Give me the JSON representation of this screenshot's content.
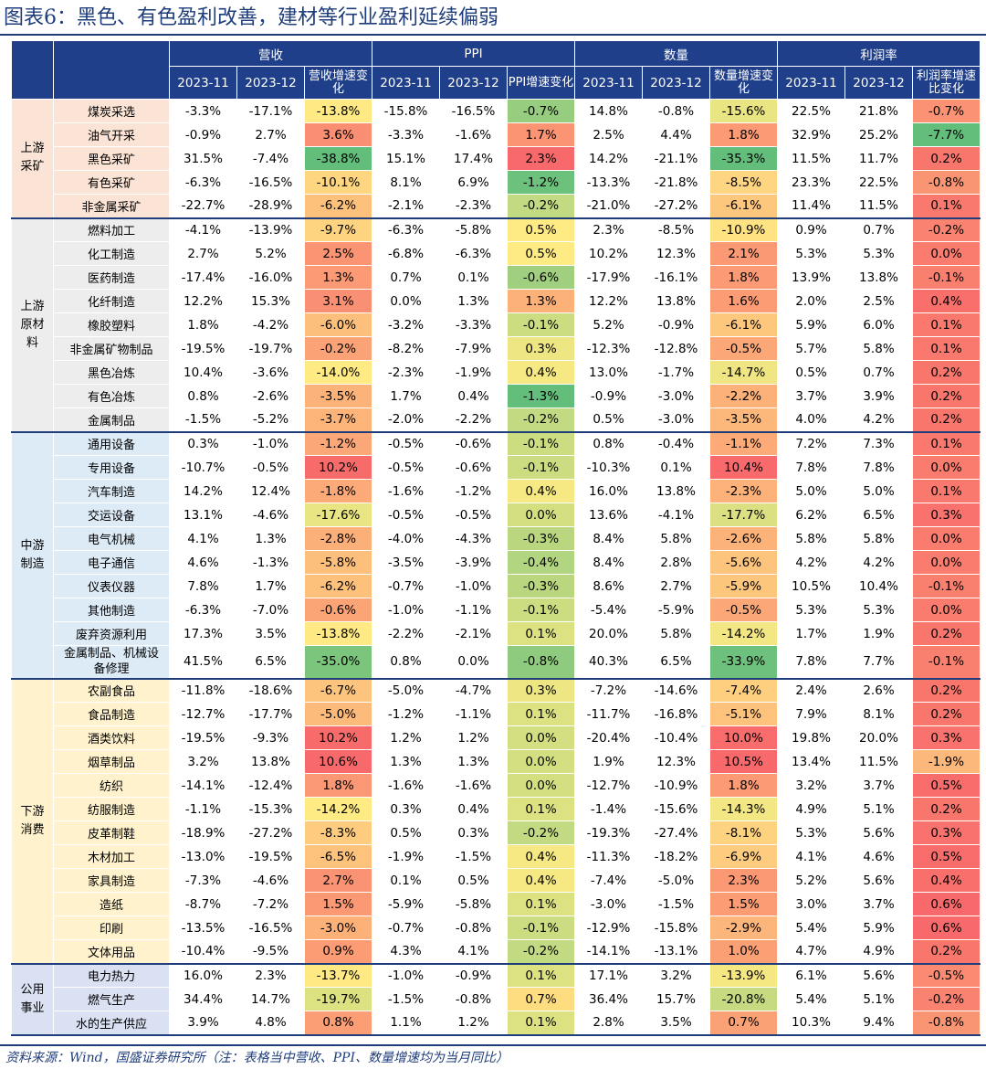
{
  "title": "图表6：黑色、有色盈利改善，建材等行业盈利延续偏弱",
  "source": "资料来源：Wind，国盛证券研究所（注：表格当中营收、PPI、数量增速均为当月同比）",
  "header": {
    "groups": [
      "营收",
      "PPI",
      "数量",
      "利润率"
    ],
    "subs": [
      [
        "2023-11",
        "2023-12",
        "营收增速变化"
      ],
      [
        "2023-11",
        "2023-12",
        "PPI增速变化"
      ],
      [
        "2023-11",
        "2023-12",
        "数量增速变化"
      ],
      [
        "2023-11",
        "2023-12",
        "利润率增速比变化"
      ]
    ]
  },
  "sections": [
    {
      "name": "上游采矿",
      "color": "#fbe4d5",
      "rows": [
        {
          "name": "煤炭采选",
          "vals": [
            "-3.3%",
            "-17.1%",
            "-13.8%",
            "-15.8%",
            "-16.5%",
            "-0.7%",
            "14.8%",
            "-0.8%",
            "-15.6%",
            "22.5%",
            "21.8%",
            "-0.7%"
          ]
        },
        {
          "name": "油气开采",
          "vals": [
            "-0.9%",
            "2.7%",
            "3.6%",
            "-3.3%",
            "-1.6%",
            "1.7%",
            "2.5%",
            "4.4%",
            "1.8%",
            "32.9%",
            "25.2%",
            "-7.7%"
          ]
        },
        {
          "name": "黑色采矿",
          "vals": [
            "31.5%",
            "-7.4%",
            "-38.8%",
            "15.1%",
            "17.4%",
            "2.3%",
            "14.2%",
            "-21.1%",
            "-35.3%",
            "11.5%",
            "11.7%",
            "0.2%"
          ]
        },
        {
          "name": "有色采矿",
          "vals": [
            "-6.3%",
            "-16.5%",
            "-10.1%",
            "8.1%",
            "6.9%",
            "-1.2%",
            "-13.3%",
            "-21.8%",
            "-8.5%",
            "23.3%",
            "22.5%",
            "-0.8%"
          ]
        },
        {
          "name": "非金属采矿",
          "vals": [
            "-22.7%",
            "-28.9%",
            "-6.2%",
            "-2.1%",
            "-2.3%",
            "-0.2%",
            "-21.0%",
            "-27.2%",
            "-6.1%",
            "11.4%",
            "11.5%",
            "0.1%"
          ]
        }
      ]
    },
    {
      "name": "上游原材料",
      "color": "#ededed",
      "rows": [
        {
          "name": "燃料加工",
          "vals": [
            "-4.1%",
            "-13.9%",
            "-9.7%",
            "-6.3%",
            "-5.8%",
            "0.5%",
            "2.3%",
            "-8.5%",
            "-10.9%",
            "0.9%",
            "0.7%",
            "-0.2%"
          ]
        },
        {
          "name": "化工制造",
          "vals": [
            "2.7%",
            "5.2%",
            "2.5%",
            "-6.8%",
            "-6.3%",
            "0.5%",
            "10.2%",
            "12.3%",
            "2.1%",
            "5.3%",
            "5.3%",
            "0.0%"
          ]
        },
        {
          "name": "医药制造",
          "vals": [
            "-17.4%",
            "-16.0%",
            "1.3%",
            "0.7%",
            "0.1%",
            "-0.6%",
            "-17.9%",
            "-16.1%",
            "1.8%",
            "13.9%",
            "13.8%",
            "-0.1%"
          ]
        },
        {
          "name": "化纤制造",
          "vals": [
            "12.2%",
            "15.3%",
            "3.1%",
            "0.0%",
            "1.3%",
            "1.3%",
            "12.2%",
            "13.8%",
            "1.6%",
            "2.0%",
            "2.5%",
            "0.4%"
          ]
        },
        {
          "name": "橡胶塑料",
          "vals": [
            "1.8%",
            "-4.2%",
            "-6.0%",
            "-3.2%",
            "-3.3%",
            "-0.1%",
            "5.2%",
            "-0.9%",
            "-6.1%",
            "5.9%",
            "6.0%",
            "0.1%"
          ]
        },
        {
          "name": "非金属矿物制品",
          "vals": [
            "-19.5%",
            "-19.7%",
            "-0.2%",
            "-8.2%",
            "-7.9%",
            "0.3%",
            "-12.3%",
            "-12.8%",
            "-0.5%",
            "5.7%",
            "5.8%",
            "0.1%"
          ]
        },
        {
          "name": "黑色冶炼",
          "vals": [
            "10.4%",
            "-3.6%",
            "-14.0%",
            "-2.3%",
            "-1.9%",
            "0.4%",
            "13.0%",
            "-1.7%",
            "-14.7%",
            "0.5%",
            "0.7%",
            "0.2%"
          ]
        },
        {
          "name": "有色冶炼",
          "vals": [
            "0.8%",
            "-2.6%",
            "-3.5%",
            "1.7%",
            "0.4%",
            "-1.3%",
            "-0.9%",
            "-3.0%",
            "-2.2%",
            "3.7%",
            "3.9%",
            "0.2%"
          ]
        },
        {
          "name": "金属制品",
          "vals": [
            "-1.5%",
            "-5.2%",
            "-3.7%",
            "-2.0%",
            "-2.2%",
            "-0.2%",
            "0.5%",
            "-3.0%",
            "-3.5%",
            "4.0%",
            "4.2%",
            "0.2%"
          ]
        }
      ]
    },
    {
      "name": "中游制造",
      "color": "#ddebf7",
      "rows": [
        {
          "name": "通用设备",
          "vals": [
            "0.3%",
            "-1.0%",
            "-1.2%",
            "-0.5%",
            "-0.6%",
            "-0.1%",
            "0.8%",
            "-0.4%",
            "-1.1%",
            "7.2%",
            "7.3%",
            "0.1%"
          ]
        },
        {
          "name": "专用设备",
          "vals": [
            "-10.7%",
            "-0.5%",
            "10.2%",
            "-0.5%",
            "-0.6%",
            "-0.1%",
            "-10.3%",
            "0.1%",
            "10.4%",
            "7.8%",
            "7.8%",
            "0.0%"
          ]
        },
        {
          "name": "汽车制造",
          "vals": [
            "14.2%",
            "12.4%",
            "-1.8%",
            "-1.6%",
            "-1.2%",
            "0.4%",
            "16.0%",
            "13.8%",
            "-2.3%",
            "5.0%",
            "5.0%",
            "0.1%"
          ]
        },
        {
          "name": "交运设备",
          "vals": [
            "13.1%",
            "-4.6%",
            "-17.6%",
            "-0.5%",
            "-0.5%",
            "0.0%",
            "13.6%",
            "-4.1%",
            "-17.7%",
            "6.2%",
            "6.5%",
            "0.3%"
          ]
        },
        {
          "name": "电气机械",
          "vals": [
            "4.1%",
            "1.3%",
            "-2.8%",
            "-4.0%",
            "-4.3%",
            "-0.3%",
            "8.4%",
            "5.8%",
            "-2.6%",
            "5.8%",
            "5.8%",
            "0.0%"
          ]
        },
        {
          "name": "电子通信",
          "vals": [
            "4.6%",
            "-1.3%",
            "-5.8%",
            "-3.5%",
            "-3.9%",
            "-0.4%",
            "8.4%",
            "2.8%",
            "-5.6%",
            "4.2%",
            "4.2%",
            "0.0%"
          ]
        },
        {
          "name": "仪表仪器",
          "vals": [
            "7.8%",
            "1.7%",
            "-6.2%",
            "-0.7%",
            "-1.0%",
            "-0.3%",
            "8.6%",
            "2.7%",
            "-5.9%",
            "10.5%",
            "10.4%",
            "-0.1%"
          ]
        },
        {
          "name": "其他制造",
          "vals": [
            "-6.3%",
            "-7.0%",
            "-0.6%",
            "-1.0%",
            "-1.1%",
            "-0.1%",
            "-5.4%",
            "-5.9%",
            "-0.5%",
            "5.3%",
            "5.3%",
            "0.0%"
          ]
        },
        {
          "name": "废弃资源利用",
          "vals": [
            "17.3%",
            "3.5%",
            "-13.8%",
            "-2.2%",
            "-2.1%",
            "0.1%",
            "20.0%",
            "5.8%",
            "-14.2%",
            "1.7%",
            "1.9%",
            "0.2%"
          ]
        },
        {
          "name": "金属制品、机械设备修理",
          "vals": [
            "41.5%",
            "6.5%",
            "-35.0%",
            "0.8%",
            "0.0%",
            "-0.8%",
            "40.3%",
            "6.5%",
            "-33.9%",
            "7.8%",
            "7.7%",
            "-0.1%"
          ]
        }
      ]
    },
    {
      "name": "下游消费",
      "color": "#fff2cc",
      "rows": [
        {
          "name": "农副食品",
          "vals": [
            "-11.8%",
            "-18.6%",
            "-6.7%",
            "-5.0%",
            "-4.7%",
            "0.3%",
            "-7.2%",
            "-14.6%",
            "-7.4%",
            "2.4%",
            "2.6%",
            "0.2%"
          ]
        },
        {
          "name": "食品制造",
          "vals": [
            "-12.7%",
            "-17.7%",
            "-5.0%",
            "-1.2%",
            "-1.1%",
            "0.1%",
            "-11.7%",
            "-16.8%",
            "-5.1%",
            "7.9%",
            "8.1%",
            "0.2%"
          ]
        },
        {
          "name": "酒类饮料",
          "vals": [
            "-19.5%",
            "-9.3%",
            "10.2%",
            "1.2%",
            "1.2%",
            "0.0%",
            "-20.4%",
            "-10.4%",
            "10.0%",
            "19.8%",
            "20.0%",
            "0.3%"
          ]
        },
        {
          "name": "烟草制品",
          "vals": [
            "3.2%",
            "13.8%",
            "10.6%",
            "1.3%",
            "1.3%",
            "0.0%",
            "1.9%",
            "12.3%",
            "10.5%",
            "13.4%",
            "11.5%",
            "-1.9%"
          ]
        },
        {
          "name": "纺织",
          "vals": [
            "-14.1%",
            "-12.4%",
            "1.8%",
            "-1.6%",
            "-1.6%",
            "0.0%",
            "-12.7%",
            "-10.9%",
            "1.8%",
            "3.2%",
            "3.7%",
            "0.5%"
          ]
        },
        {
          "name": "纺服制造",
          "vals": [
            "-1.1%",
            "-15.3%",
            "-14.2%",
            "0.3%",
            "0.4%",
            "0.1%",
            "-1.4%",
            "-15.6%",
            "-14.3%",
            "4.9%",
            "5.1%",
            "0.2%"
          ]
        },
        {
          "name": "皮革制鞋",
          "vals": [
            "-18.9%",
            "-27.2%",
            "-8.3%",
            "0.5%",
            "0.3%",
            "-0.2%",
            "-19.3%",
            "-27.4%",
            "-8.1%",
            "5.3%",
            "5.6%",
            "0.3%"
          ]
        },
        {
          "name": "木材加工",
          "vals": [
            "-13.0%",
            "-19.5%",
            "-6.5%",
            "-1.9%",
            "-1.5%",
            "0.4%",
            "-11.3%",
            "-18.2%",
            "-6.9%",
            "4.1%",
            "4.6%",
            "0.5%"
          ]
        },
        {
          "name": "家具制造",
          "vals": [
            "-7.3%",
            "-4.6%",
            "2.7%",
            "0.1%",
            "0.5%",
            "0.4%",
            "-7.4%",
            "-5.0%",
            "2.3%",
            "5.2%",
            "5.6%",
            "0.4%"
          ]
        },
        {
          "name": "造纸",
          "vals": [
            "-8.7%",
            "-7.2%",
            "1.5%",
            "-5.9%",
            "-5.8%",
            "0.1%",
            "-3.0%",
            "-1.5%",
            "1.5%",
            "3.0%",
            "3.7%",
            "0.6%"
          ]
        },
        {
          "name": "印刷",
          "vals": [
            "-13.5%",
            "-16.5%",
            "-3.0%",
            "-0.7%",
            "-0.8%",
            "-0.1%",
            "-12.9%",
            "-15.8%",
            "-2.9%",
            "5.4%",
            "5.9%",
            "0.6%"
          ]
        },
        {
          "name": "文体用品",
          "vals": [
            "-10.4%",
            "-9.5%",
            "0.9%",
            "4.3%",
            "4.1%",
            "-0.2%",
            "-14.1%",
            "-13.1%",
            "1.0%",
            "4.7%",
            "4.9%",
            "0.2%"
          ]
        }
      ]
    },
    {
      "name": "公用事业",
      "color": "#d9e1f2",
      "rows": [
        {
          "name": "电力热力",
          "vals": [
            "16.0%",
            "2.3%",
            "-13.7%",
            "-1.0%",
            "-0.9%",
            "0.1%",
            "17.1%",
            "3.2%",
            "-13.9%",
            "6.1%",
            "5.6%",
            "-0.5%"
          ]
        },
        {
          "name": "燃气生产",
          "vals": [
            "34.4%",
            "14.7%",
            "-19.7%",
            "-1.5%",
            "-0.8%",
            "0.7%",
            "36.4%",
            "15.7%",
            "-20.8%",
            "5.4%",
            "5.1%",
            "-0.2%"
          ]
        },
        {
          "name": "水的生产供应",
          "vals": [
            "3.9%",
            "4.8%",
            "0.8%",
            "1.1%",
            "1.2%",
            "0.1%",
            "2.8%",
            "3.5%",
            "0.7%",
            "10.3%",
            "9.4%",
            "-0.8%"
          ]
        }
      ]
    }
  ]
}
